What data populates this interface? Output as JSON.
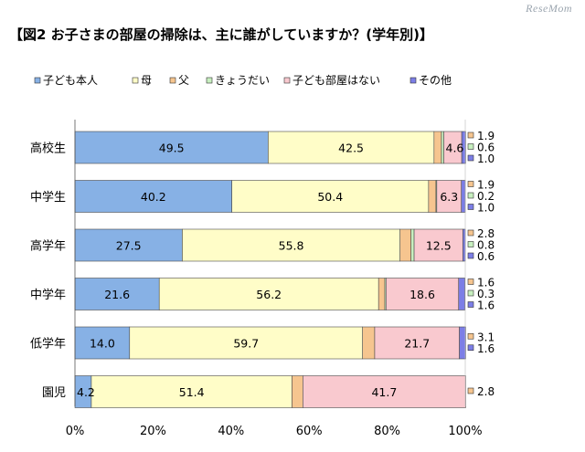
{
  "watermark": "ReseMom",
  "chart_data": {
    "type": "bar",
    "orientation": "horizontal",
    "stacked": true,
    "title": "【図2 お子さまの部屋の掃除は、主に誰がしていますか？(学年別)】",
    "categories": [
      "高校生",
      "中学生",
      "高学年",
      "中学年",
      "低学年",
      "園児"
    ],
    "series": [
      {
        "name": "子ども本人",
        "color": "#87b1e5",
        "values": [
          49.5,
          40.2,
          27.5,
          21.6,
          14.0,
          4.2
        ],
        "labels": [
          "49.5",
          "40.2",
          "27.5",
          "21.6",
          "14.0",
          "4.2"
        ]
      },
      {
        "name": "母",
        "color": "#fffdc8",
        "values": [
          42.5,
          50.4,
          55.8,
          56.2,
          59.7,
          51.4
        ],
        "labels": [
          "42.5",
          "50.4",
          "55.8",
          "56.2",
          "59.7",
          "51.4"
        ]
      },
      {
        "name": "父",
        "color": "#f6c58f",
        "values": [
          1.9,
          1.9,
          2.8,
          1.6,
          3.1,
          2.8
        ],
        "labels": [
          "1.9",
          "1.9",
          "2.8",
          "1.6",
          "3.1",
          "2.8"
        ]
      },
      {
        "name": "きょうだい",
        "color": "#c7efbf",
        "values": [
          0.6,
          0.2,
          0.8,
          0.3,
          0,
          0
        ],
        "labels": [
          "0.6",
          "0.2",
          "0.8",
          "0.3",
          "",
          ""
        ]
      },
      {
        "name": "子ども部屋はない",
        "color": "#f9c9cf",
        "values": [
          4.6,
          6.3,
          12.5,
          18.6,
          21.7,
          41.7
        ],
        "labels": [
          "4.6",
          "6.3",
          "12.5",
          "18.6",
          "21.7",
          "41.7"
        ]
      },
      {
        "name": "その他",
        "color": "#7c7ee6",
        "values": [
          1.0,
          1.0,
          0.6,
          1.6,
          1.6,
          0
        ],
        "labels": [
          "1.0",
          "1.0",
          "0.6",
          "1.6",
          "1.6",
          ""
        ]
      }
    ],
    "side_labels": [
      [
        "1.9",
        "0.6",
        "1.0"
      ],
      [
        "1.9",
        "0.2",
        "1.0"
      ],
      [
        "2.8",
        "0.8",
        "0.6"
      ],
      [
        "1.6",
        "0.3",
        "1.6"
      ],
      [
        "3.1",
        "1.6"
      ],
      [
        "2.8"
      ]
    ],
    "side_label_series": [
      [
        2,
        3,
        5
      ],
      [
        2,
        3,
        5
      ],
      [
        2,
        3,
        5
      ],
      [
        2,
        3,
        5
      ],
      [
        2,
        5
      ],
      [
        2
      ]
    ],
    "xlim": [
      0,
      100
    ],
    "xticks": [
      "0%",
      "20%",
      "40%",
      "60%",
      "80%",
      "100%"
    ],
    "legend_position": "top",
    "grid": false
  }
}
